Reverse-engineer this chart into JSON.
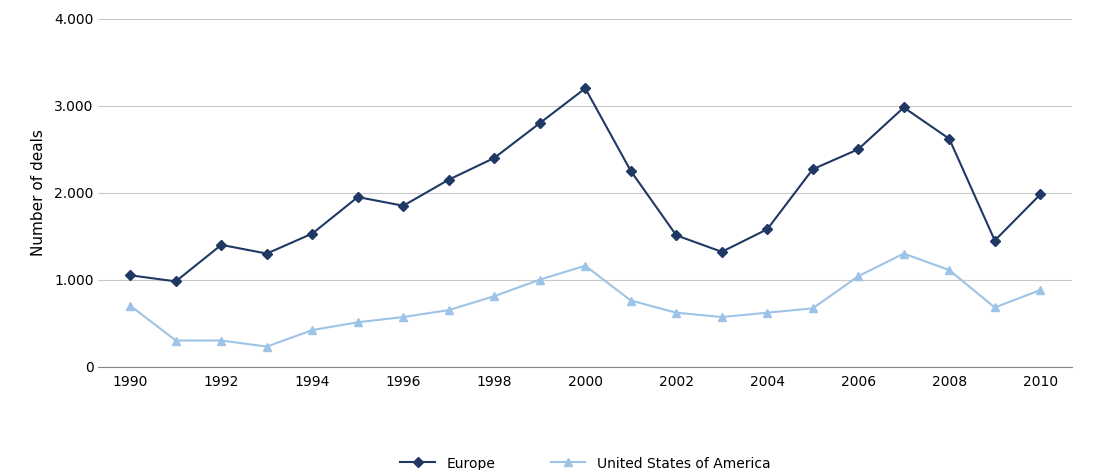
{
  "years": [
    1990,
    1991,
    1992,
    1993,
    1994,
    1995,
    1996,
    1997,
    1998,
    1999,
    2000,
    2001,
    2002,
    2003,
    2004,
    2005,
    2006,
    2007,
    2008,
    2009,
    2010
  ],
  "europe": [
    1050,
    980,
    1400,
    1300,
    1530,
    1950,
    1850,
    2150,
    2400,
    2800,
    3200,
    2250,
    1510,
    1320,
    1580,
    2270,
    2500,
    2980,
    2620,
    1450,
    1980
  ],
  "usa": [
    700,
    300,
    300,
    230,
    420,
    510,
    570,
    650,
    810,
    1000,
    1160,
    760,
    620,
    570,
    620,
    670,
    1040,
    1300,
    1110,
    680,
    880
  ],
  "europe_color": "#1f3864",
  "usa_color": "#9dc3e6",
  "ylabel": "Number of deals",
  "ylim": [
    0,
    4000
  ],
  "yticks": [
    0,
    1000,
    2000,
    3000,
    4000
  ],
  "ytick_labels": [
    "0",
    "1.000",
    "2.000",
    "3.000",
    "4.000"
  ],
  "xticks": [
    1990,
    1992,
    1994,
    1996,
    1998,
    2000,
    2002,
    2004,
    2006,
    2008,
    2010
  ],
  "legend_europe": "Europe",
  "legend_usa": "United States of America",
  "bg_color": "#ffffff",
  "grid_color": "#c8c8c8"
}
